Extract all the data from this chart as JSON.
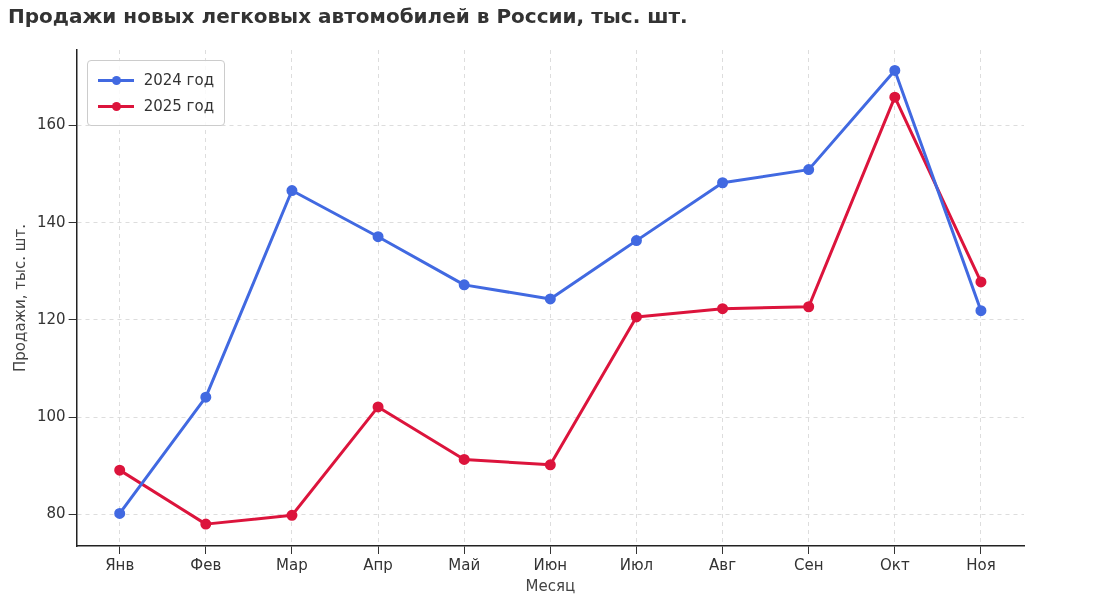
{
  "chart_data": {
    "type": "line",
    "title": "Продажи новых легковых автомобилей в России, тыс. шт.",
    "xlabel": "Месяц",
    "ylabel": "Продажи, тыс. шт.",
    "categories": [
      "Янв",
      "Фев",
      "Мар",
      "Апр",
      "Май",
      "Июн",
      "Июл",
      "Авг",
      "Сен",
      "Окт",
      "Ноя"
    ],
    "series": [
      {
        "name": "2024 год",
        "color": "#4169e1",
        "values": [
          80.2,
          104.1,
          146.6,
          137.1,
          127.2,
          124.3,
          136.3,
          148.2,
          150.9,
          171.3,
          121.9
        ]
      },
      {
        "name": "2025 год",
        "color": "#dc143c",
        "values": [
          89.1,
          78.0,
          79.8,
          102.1,
          91.3,
          90.2,
          120.6,
          122.3,
          122.7,
          165.8,
          127.8
        ]
      }
    ],
    "ylim": [
      73.5,
      175.5
    ],
    "yticks": [
      80,
      100,
      120,
      140,
      160
    ],
    "grid": true,
    "legend": "top left",
    "marker": "circle",
    "line_style": "solid"
  }
}
